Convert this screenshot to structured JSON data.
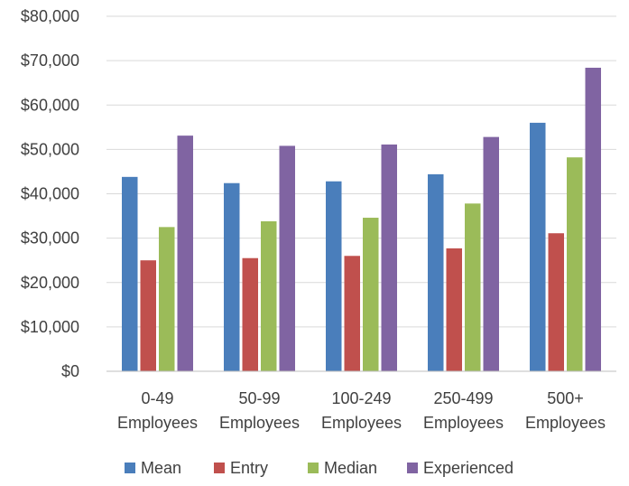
{
  "chart_data": {
    "type": "bar",
    "title": "",
    "xlabel": "",
    "ylabel": "",
    "categories": [
      [
        "0-49",
        "Employees"
      ],
      [
        "50-99",
        "Employees"
      ],
      [
        "100-249",
        "Employees"
      ],
      [
        "250-499",
        "Employees"
      ],
      [
        "500+",
        "Employees"
      ]
    ],
    "series": [
      {
        "name": "Mean",
        "color": "#4a7ebb",
        "values": [
          43800,
          42400,
          42800,
          44400,
          56000
        ]
      },
      {
        "name": "Entry",
        "color": "#c0504d",
        "values": [
          25000,
          25500,
          26000,
          27700,
          31100
        ]
      },
      {
        "name": "Median",
        "color": "#9bbb59",
        "values": [
          32500,
          33800,
          34600,
          37800,
          48200
        ]
      },
      {
        "name": "Experienced",
        "color": "#8064a2",
        "values": [
          53100,
          50800,
          51100,
          52800,
          68400
        ]
      }
    ],
    "ylim": [
      0,
      80000
    ],
    "yticks": [
      "$0",
      "$10,000",
      "$20,000",
      "$30,000",
      "$40,000",
      "$50,000",
      "$60,000",
      "$70,000",
      "$80,000"
    ],
    "grid": true,
    "legend_position": "bottom"
  }
}
